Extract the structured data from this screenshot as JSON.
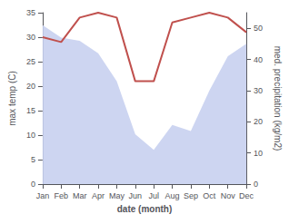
{
  "chart_data": {
    "type": "line",
    "xlabel": "date (month)",
    "ylabel": "max temp (C)",
    "y2label": "med. precipitation (kg/m2)",
    "categories": [
      "Jan",
      "Feb",
      "Mar",
      "Apr",
      "May",
      "Jun",
      "Jul",
      "Aug",
      "Sep",
      "Oct",
      "Nov",
      "Dec"
    ],
    "series": [
      {
        "type": "area",
        "axis": "y2",
        "color": "#c8d0f0",
        "values": [
          51,
          47,
          46,
          42,
          33,
          16,
          11,
          19,
          17,
          30,
          41,
          45
        ]
      },
      {
        "type": "line",
        "color": "#c0504d",
        "values": [
          30,
          29,
          34,
          35,
          34,
          21,
          21,
          33,
          34,
          35,
          34,
          31
        ]
      }
    ],
    "ylim": [
      0,
      35
    ],
    "yticks": [
      0,
      5,
      10,
      15,
      20,
      25,
      30,
      35
    ],
    "y2lim": [
      0,
      55
    ],
    "y2ticks": [
      0,
      10,
      20,
      30,
      40,
      50
    ],
    "grid": false
  }
}
